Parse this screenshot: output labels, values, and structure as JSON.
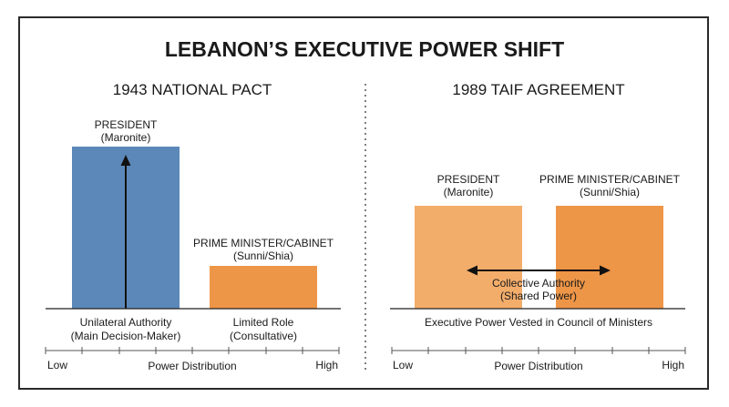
{
  "title": "LEBANON’S EXECUTIVE POWER SHIFT",
  "colors": {
    "president_1943": "#5b88b9",
    "cabinet_1943": "#ee9647",
    "president_1989": "#f3ad6b",
    "cabinet_1989": "#ee9647",
    "border": "#2a2a2a"
  },
  "left": {
    "heading": "1943 NATIONAL PACT",
    "president": {
      "label": "PRESIDENT",
      "sub": "(Maronite)"
    },
    "cabinet": {
      "label": "PRIME MINISTER/CABINET",
      "sub": "(Sunni/Shia)"
    },
    "caption_president": {
      "line1": "Unilateral Authority",
      "line2": "(Main Decision-Maker)"
    },
    "caption_cabinet": {
      "line1": "Limited Role",
      "line2": "(Consultative)"
    },
    "scale": {
      "low": "Low",
      "label": "Power Distribution",
      "high": "High"
    }
  },
  "right": {
    "heading": "1989 TAIF AGREEMENT",
    "president": {
      "label": "PRESIDENT",
      "sub": "(Maronite)"
    },
    "cabinet": {
      "label": "PRIME MINISTER/CABINET",
      "sub": "(Sunni/Shia)"
    },
    "shared": {
      "line1": "Collective Authority",
      "line2": "(Shared Power)"
    },
    "caption": "Executive Power Vested in Council of Ministers",
    "scale": {
      "low": "Low",
      "label": "Power Distribution",
      "high": "High"
    }
  }
}
